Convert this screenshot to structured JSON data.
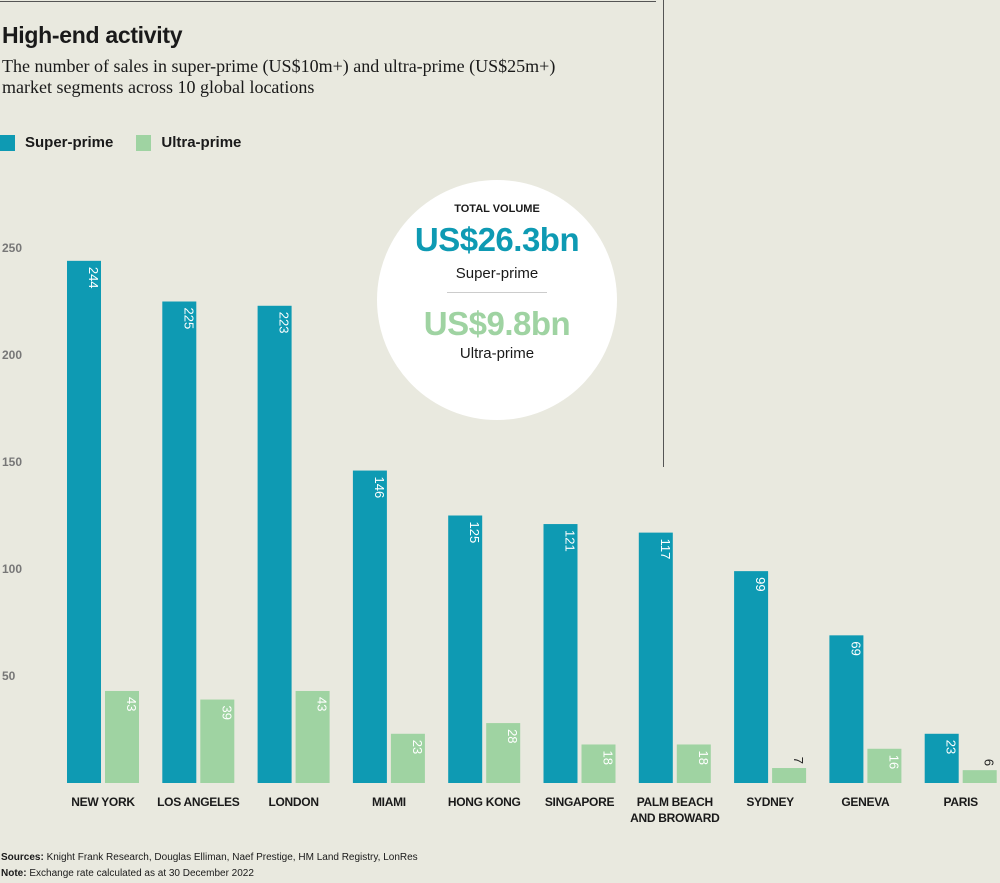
{
  "title": "High-end activity",
  "subtitle": "The number of sales in super-prime (US$10m+) and ultra-prime (US$25m+) market segments across 10 global locations",
  "legend": [
    {
      "label": "Super-prime",
      "color": "#0e9ab3"
    },
    {
      "label": "Ultra-prime",
      "color": "#9fd3a2"
    }
  ],
  "callout": {
    "heading": "TOTAL VOLUME",
    "super_value": "US$26.3bn",
    "super_label": "Super-prime",
    "ultra_value": "US$9.8bn",
    "ultra_label": "Ultra-prime"
  },
  "chart_data": {
    "type": "bar",
    "title": "High-end activity",
    "categories": [
      "NEW YORK",
      "LOS ANGELES",
      "LONDON",
      "MIAMI",
      "HONG KONG",
      "SINGAPORE",
      "PALM BEACH AND BROWARD",
      "SYDNEY",
      "GENEVA",
      "PARIS"
    ],
    "series": [
      {
        "name": "Super-prime",
        "color": "#0e9ab3",
        "values": [
          244,
          225,
          223,
          146,
          125,
          121,
          117,
          99,
          69,
          23
        ]
      },
      {
        "name": "Ultra-prime",
        "color": "#9fd3a2",
        "values": [
          43,
          39,
          43,
          23,
          28,
          18,
          18,
          7,
          16,
          6
        ]
      }
    ],
    "yticks": [
      50,
      100,
      150,
      200,
      250
    ],
    "ylim": [
      0,
      250
    ],
    "grid": false,
    "legend_position": "top-left"
  },
  "footer": {
    "sources_label": "Sources:",
    "sources": "Knight Frank Research, Douglas Elliman, Naef Prestige, HM Land Registry, LonRes",
    "note_label": "Note:",
    "note": "Exchange rate calculated as at 30 December 2022"
  }
}
